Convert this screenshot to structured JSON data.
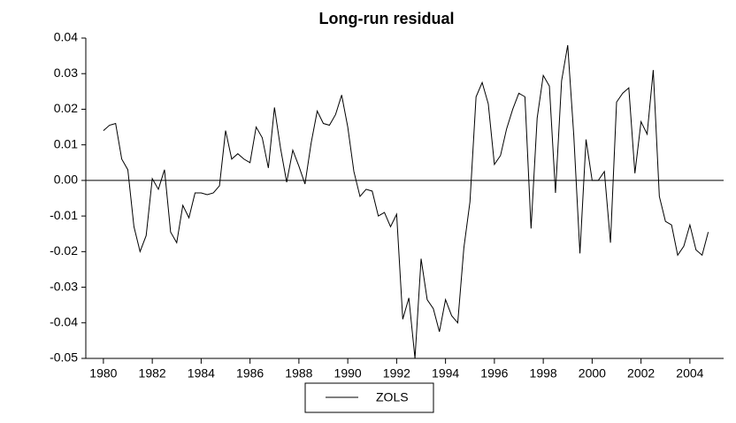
{
  "chart_data": {
    "type": "line",
    "title": "Long-run residual",
    "x": [
      1980,
      1980.25,
      1980.5,
      1980.75,
      1981,
      1981.25,
      1981.5,
      1981.75,
      1982,
      1982.25,
      1982.5,
      1982.75,
      1983,
      1983.25,
      1983.5,
      1983.75,
      1984,
      1984.25,
      1984.5,
      1984.75,
      1985,
      1985.25,
      1985.5,
      1985.75,
      1986,
      1986.25,
      1986.5,
      1986.75,
      1987,
      1987.25,
      1987.5,
      1987.75,
      1988,
      1988.25,
      1988.5,
      1988.75,
      1989,
      1989.25,
      1989.5,
      1989.75,
      1990,
      1990.25,
      1990.5,
      1990.75,
      1991,
      1991.25,
      1991.5,
      1991.75,
      1992,
      1992.25,
      1992.5,
      1992.75,
      1993,
      1993.25,
      1993.5,
      1993.75,
      1994,
      1994.25,
      1994.5,
      1994.75,
      1995,
      1995.25,
      1995.5,
      1995.75,
      1996,
      1996.25,
      1996.5,
      1996.75,
      1997,
      1997.25,
      1997.5,
      1997.75,
      1998,
      1998.25,
      1998.5,
      1998.75,
      1999,
      1999.25,
      1999.5,
      1999.75,
      2000,
      2000.25,
      2000.5,
      2000.75,
      2001,
      2001.25,
      2001.5,
      2001.75,
      2002,
      2002.25,
      2002.5,
      2002.75,
      2003,
      2003.25,
      2003.5,
      2003.75,
      2004,
      2004.25,
      2004.5,
      2004.75
    ],
    "series": [
      {
        "name": "ZOLS",
        "color": "#000000",
        "values": [
          0.014,
          0.0155,
          0.016,
          0.006,
          0.003,
          -0.013,
          -0.02,
          -0.0155,
          0.0005,
          -0.0025,
          0.003,
          -0.0145,
          -0.0175,
          -0.007,
          -0.0105,
          -0.0035,
          -0.0035,
          -0.004,
          -0.0035,
          -0.0015,
          0.014,
          0.006,
          0.0075,
          0.006,
          0.005,
          0.015,
          0.012,
          0.0035,
          0.0205,
          0.009,
          -0.0005,
          0.0085,
          0.004,
          -0.001,
          0.0105,
          0.0195,
          0.016,
          0.0155,
          0.0185,
          0.024,
          0.015,
          0.0025,
          -0.0045,
          -0.0025,
          -0.003,
          -0.01,
          -0.009,
          -0.013,
          -0.0095,
          -0.039,
          -0.033,
          -0.05,
          -0.022,
          -0.0335,
          -0.036,
          -0.0425,
          -0.0335,
          -0.038,
          -0.04,
          -0.019,
          -0.006,
          0.0235,
          0.0275,
          0.0215,
          0.0045,
          0.007,
          0.0145,
          0.02,
          0.0245,
          0.0235,
          -0.0135,
          0.0175,
          0.0295,
          0.0265,
          -0.0035,
          0.028,
          0.038,
          0.0125,
          -0.0205,
          0.0115,
          0,
          0,
          0.0025,
          -0.0175,
          0.022,
          0.0245,
          0.026,
          0.002,
          0.0165,
          0.013,
          0.031,
          -0.0045,
          -0.0115,
          -0.0125,
          -0.021,
          -0.0185,
          -0.0125,
          -0.0195,
          -0.021,
          -0.0145
        ]
      }
    ],
    "xlim": [
      1979.28,
      2005.38
    ],
    "xticks": [
      1980,
      1982,
      1984,
      1986,
      1988,
      1990,
      1992,
      1994,
      1996,
      1998,
      2000,
      2002,
      2004
    ],
    "ylim": [
      -0.05,
      0.04
    ],
    "yticks": [
      0.04,
      0.03,
      0.02,
      0.01,
      {
        "value": 0,
        "label": "0.00"
      },
      -0.01,
      -0.02,
      -0.03,
      -0.04,
      -0.05
    ],
    "zero_line": true
  }
}
